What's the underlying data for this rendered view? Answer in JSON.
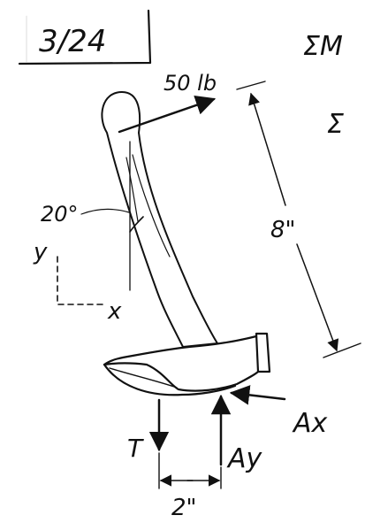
{
  "problem": {
    "number": "3/24"
  },
  "equations": {
    "line1": "ΣM",
    "line2": "Σ"
  },
  "labels": {
    "applied_force": "50 lb",
    "angle": "20°",
    "length": "8\"",
    "axis_y": "y",
    "axis_x": "x",
    "tension": "T",
    "reaction_x": "Ax",
    "reaction_y": "Ay",
    "spacing": "2\""
  }
}
